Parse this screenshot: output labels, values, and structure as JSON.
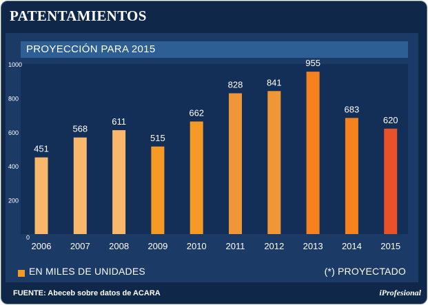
{
  "header": {
    "title": "PATENTAMIENTOS"
  },
  "chart_data": {
    "type": "bar",
    "title": "PROYECCIÓN PARA 2015",
    "categories": [
      "2006",
      "2007",
      "2008",
      "2009",
      "2010",
      "2011",
      "2012",
      "2013",
      "2014",
      "2015"
    ],
    "values": [
      451,
      568,
      611,
      515,
      662,
      828,
      841,
      955,
      683,
      620
    ],
    "ylim": [
      0,
      1000
    ],
    "yticks": [
      0,
      200,
      400,
      600,
      800,
      1000
    ],
    "colors": [
      "#f8b76a",
      "#f8b76a",
      "#f8b76a",
      "#f59a24",
      "#f59a24",
      "#ef9637",
      "#ef9637",
      "#f5821f",
      "#f5821f",
      "#e8512a"
    ],
    "xlabel": "",
    "ylabel": "",
    "grid": false
  },
  "legend": {
    "label": "EN MILES DE UNIDADES",
    "note": "(*) PROYECTADO",
    "color": "#f39a27"
  },
  "footer": {
    "source": "FUENTE: Abeceb sobre datos de ACARA",
    "brand": "iProfesional"
  }
}
